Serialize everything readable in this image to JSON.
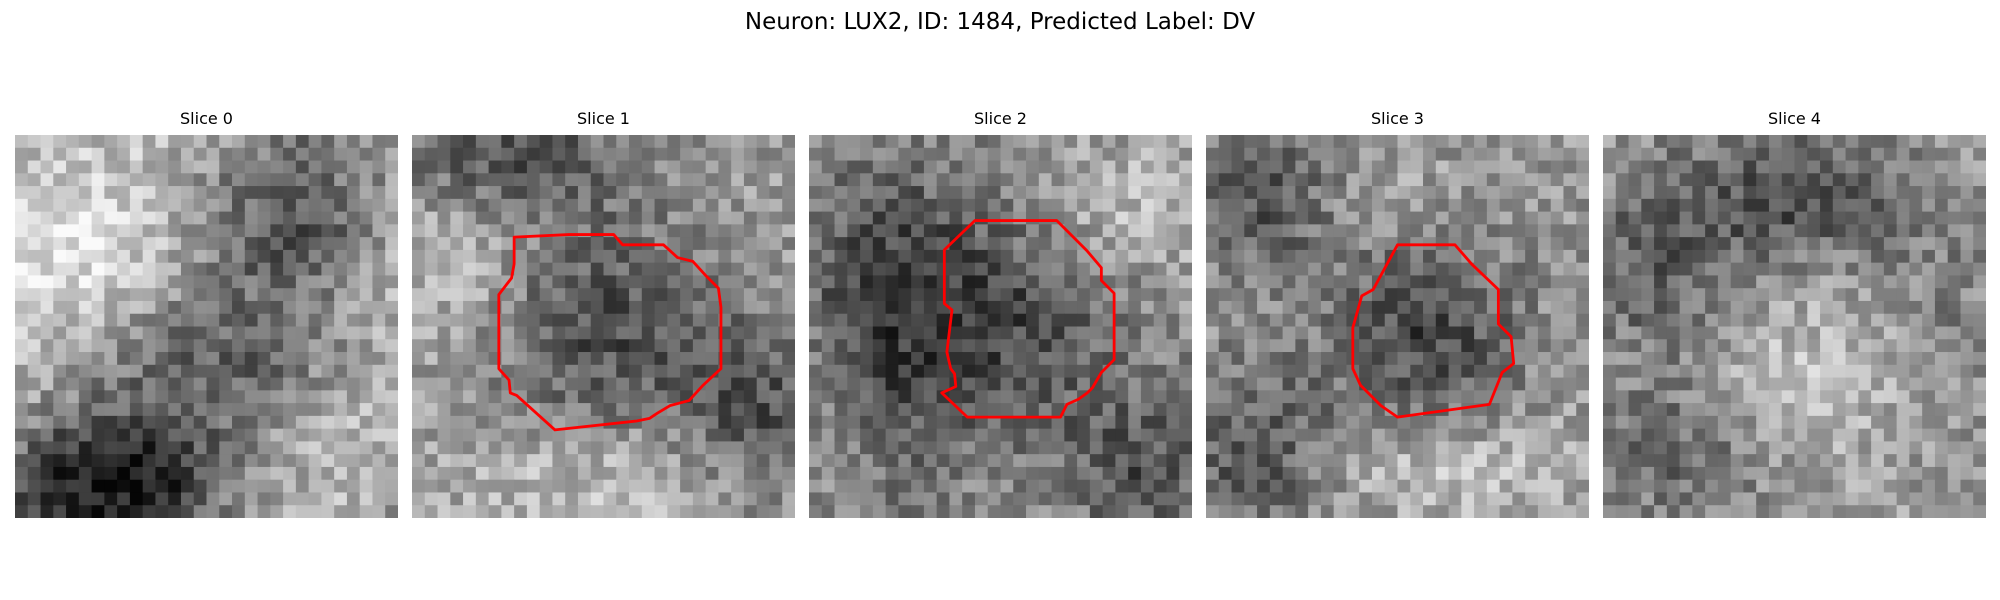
{
  "figure": {
    "title": "Neuron: LUX2, ID: 1484, Predicted Label: DV"
  },
  "colors": {
    "background": "#ffffff",
    "text": "#000000",
    "contour": "#ff0000",
    "colormap": "grayscale"
  },
  "slices": [
    {
      "title": "Slice 0",
      "has_contour": false
    },
    {
      "title": "Slice 1",
      "has_contour": true
    },
    {
      "title": "Slice 2",
      "has_contour": true
    },
    {
      "title": "Slice 3",
      "has_contour": true
    },
    {
      "title": "Slice 4",
      "has_contour": false
    }
  ]
}
